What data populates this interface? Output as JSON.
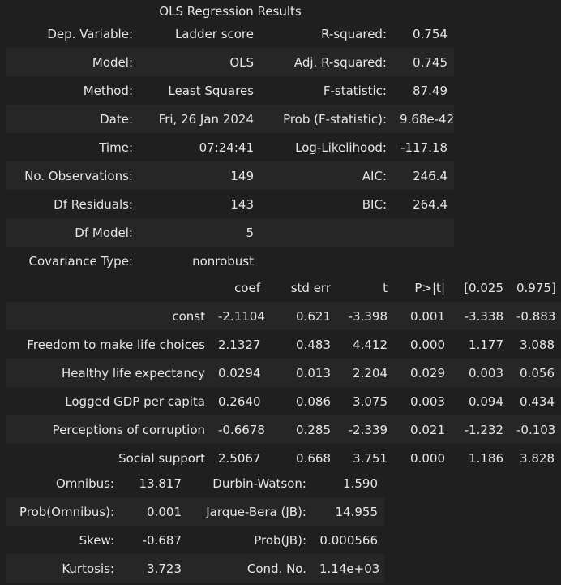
{
  "title": "OLS Regression Results",
  "summary": [
    {
      "k1": "Dep. Variable:",
      "v1": "Ladder score",
      "k2": "R-squared:",
      "v2": "0.754"
    },
    {
      "k1": "Model:",
      "v1": "OLS",
      "k2": "Adj. R-squared:",
      "v2": "0.745"
    },
    {
      "k1": "Method:",
      "v1": "Least Squares",
      "k2": "F-statistic:",
      "v2": "87.49"
    },
    {
      "k1": "Date:",
      "v1": "Fri, 26 Jan 2024",
      "k2": "Prob (F-statistic):",
      "v2": "9.68e-42"
    },
    {
      "k1": "Time:",
      "v1": "07:24:41",
      "k2": "Log-Likelihood:",
      "v2": "-117.18"
    },
    {
      "k1": "No. Observations:",
      "v1": "149",
      "k2": "AIC:",
      "v2": "246.4"
    },
    {
      "k1": "Df Residuals:",
      "v1": "143",
      "k2": "BIC:",
      "v2": "264.4"
    },
    {
      "k1": "Df Model:",
      "v1": "5",
      "k2": "",
      "v2": ""
    },
    {
      "k1": "Covariance Type:",
      "v1": "nonrobust",
      "k2": "",
      "v2": ""
    }
  ],
  "coef_table": {
    "headers": [
      "",
      "coef",
      "std err",
      "t",
      "P>|t|",
      "[0.025",
      "0.975]"
    ],
    "rows": [
      [
        "const",
        "-2.1104",
        "0.621",
        "-3.398",
        "0.001",
        "-3.338",
        "-0.883"
      ],
      [
        "Freedom to make life choices",
        "2.1327",
        "0.483",
        "4.412",
        "0.000",
        "1.177",
        "3.088"
      ],
      [
        "Healthy life expectancy",
        "0.0294",
        "0.013",
        "2.204",
        "0.029",
        "0.003",
        "0.056"
      ],
      [
        "Logged GDP per capita",
        "0.2640",
        "0.086",
        "3.075",
        "0.003",
        "0.094",
        "0.434"
      ],
      [
        "Perceptions of corruption",
        "-0.6678",
        "0.285",
        "-2.339",
        "0.021",
        "-1.232",
        "-0.103"
      ],
      [
        "Social support",
        "2.5067",
        "0.668",
        "3.751",
        "0.000",
        "1.186",
        "3.828"
      ]
    ]
  },
  "diagnostics": [
    {
      "k1": "Omnibus:",
      "v1": "13.817",
      "k2": "Durbin-Watson:",
      "v2": "1.590"
    },
    {
      "k1": "Prob(Omnibus):",
      "v1": "0.001",
      "k2": "Jarque-Bera (JB):",
      "v2": "14.955"
    },
    {
      "k1": "Skew:",
      "v1": "-0.687",
      "k2": "Prob(JB):",
      "v2": "0.000566"
    },
    {
      "k1": "Kurtosis:",
      "v1": "3.723",
      "k2": "Cond. No.",
      "v2": "1.14e+03"
    }
  ]
}
